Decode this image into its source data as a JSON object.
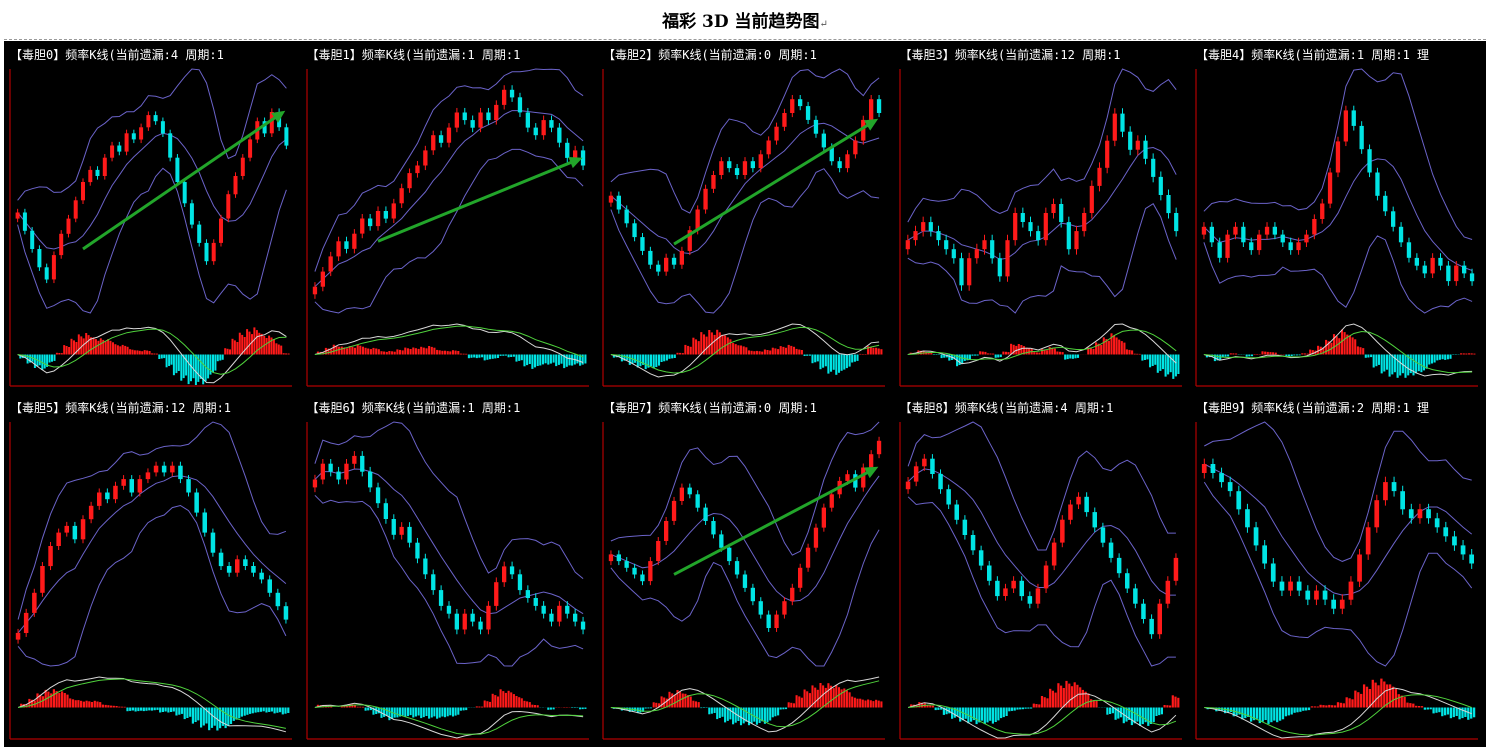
{
  "page": {
    "title": "福彩 3D 当前趋势图",
    "return_mark": "↵"
  },
  "colors": {
    "up": "#ff1a1a",
    "down": "#00e5e5",
    "band": "#6b63c9",
    "arrow": "#22a52a",
    "dif": "#d8d8d8",
    "dea": "#4fd13c",
    "axis": "#b00000"
  },
  "chart_data": [
    {
      "type": "candlestick",
      "label": "【毒胆0】频率K线(当前遗漏:4 周期:1",
      "trend_arrow": true,
      "closes": [
        62,
        56,
        50,
        44,
        40,
        48,
        55,
        60,
        66,
        72,
        76,
        74,
        80,
        84,
        82,
        88,
        86,
        90,
        94,
        92,
        88,
        80,
        72,
        65,
        58,
        52,
        46,
        52,
        60,
        68,
        74,
        80,
        86,
        92,
        88,
        95,
        90,
        84
      ]
    },
    {
      "type": "candlestick",
      "label": "【毒胆1】频率K线(当前遗漏:1 周期:1",
      "trend_arrow": true,
      "closes": [
        40,
        44,
        48,
        52,
        50,
        54,
        58,
        56,
        60,
        58,
        62,
        66,
        70,
        72,
        76,
        80,
        78,
        82,
        86,
        84,
        82,
        86,
        84,
        88,
        92,
        90,
        86,
        82,
        80,
        84,
        82,
        78,
        74,
        76,
        72
      ]
    },
    {
      "type": "candlestick",
      "label": "【毒胆2】频率K线(当前遗漏:0 周期:1",
      "trend_arrow": true,
      "closes": [
        62,
        58,
        54,
        50,
        46,
        42,
        40,
        44,
        42,
        46,
        52,
        58,
        64,
        68,
        72,
        70,
        68,
        72,
        70,
        74,
        78,
        82,
        86,
        90,
        88,
        84,
        80,
        76,
        72,
        70,
        74,
        78,
        84,
        90,
        86
      ]
    },
    {
      "type": "candlestick",
      "label": "【毒胆3】频率K线(当前遗漏:12 周期:1",
      "trend_arrow": false,
      "closes": [
        64,
        66,
        68,
        66,
        64,
        62,
        60,
        54,
        60,
        62,
        64,
        60,
        56,
        64,
        70,
        68,
        66,
        64,
        70,
        72,
        68,
        62,
        66,
        70,
        76,
        80,
        86,
        92,
        88,
        84,
        86,
        82,
        78,
        74,
        70,
        66
      ]
    },
    {
      "type": "candlestick",
      "label": "【毒胆4】频率K线(当前遗漏:1 周期:1 理",
      "trend_arrow": false,
      "closes": [
        60,
        56,
        52,
        58,
        60,
        56,
        54,
        58,
        60,
        58,
        56,
        54,
        56,
        58,
        62,
        66,
        74,
        82,
        90,
        86,
        80,
        74,
        68,
        64,
        60,
        56,
        52,
        50,
        48,
        52,
        50,
        46,
        50,
        48,
        46
      ]
    },
    {
      "type": "candlestick",
      "label": "【毒胆5】频率K线(当前遗漏:12 周期:1",
      "trend_arrow": false,
      "closes": [
        30,
        36,
        42,
        50,
        56,
        60,
        62,
        58,
        64,
        68,
        72,
        70,
        74,
        76,
        72,
        76,
        78,
        80,
        78,
        80,
        76,
        72,
        66,
        60,
        54,
        50,
        48,
        52,
        50,
        48,
        46,
        42,
        38,
        34
      ]
    },
    {
      "type": "candlestick",
      "label": "【毒胆6】频率K线(当前遗漏:1 周期:1",
      "trend_arrow": false,
      "closes": [
        72,
        76,
        74,
        72,
        76,
        78,
        74,
        70,
        66,
        62,
        58,
        60,
        56,
        52,
        48,
        44,
        40,
        38,
        34,
        38,
        36,
        34,
        40,
        46,
        50,
        48,
        44,
        42,
        40,
        38,
        36,
        40,
        38,
        36,
        34
      ]
    },
    {
      "type": "candlestick",
      "label": "【毒胆7】频率K线(当前遗漏:0 周期:1",
      "trend_arrow": true,
      "closes": [
        52,
        50,
        48,
        46,
        44,
        50,
        56,
        62,
        68,
        72,
        70,
        66,
        62,
        58,
        54,
        50,
        46,
        42,
        38,
        34,
        30,
        34,
        38,
        42,
        48,
        54,
        60,
        66,
        70,
        74,
        76,
        72,
        78,
        82,
        86
      ]
    },
    {
      "type": "candlestick",
      "label": "【毒胆8】频率K线(当前遗漏:4 周期:1",
      "trend_arrow": false,
      "closes": [
        76,
        80,
        82,
        78,
        74,
        70,
        66,
        62,
        58,
        54,
        50,
        46,
        48,
        50,
        46,
        44,
        48,
        54,
        60,
        66,
        70,
        72,
        68,
        64,
        60,
        56,
        52,
        48,
        44,
        40,
        36,
        44,
        50,
        56
      ]
    },
    {
      "type": "candlestick",
      "label": "【毒胆9】频率K线(当前遗漏:2 周期:1 理",
      "trend_arrow": false,
      "closes": [
        70,
        68,
        66,
        64,
        60,
        56,
        52,
        48,
        44,
        42,
        44,
        42,
        40,
        42,
        40,
        38,
        40,
        44,
        50,
        56,
        62,
        66,
        64,
        60,
        58,
        60,
        58,
        56,
        54,
        52,
        50,
        48
      ]
    }
  ]
}
